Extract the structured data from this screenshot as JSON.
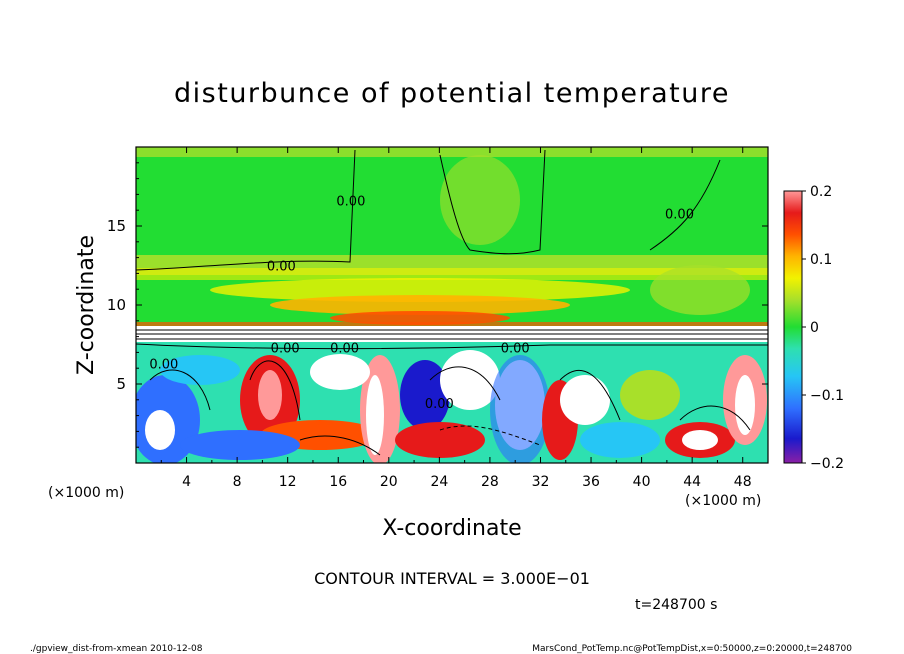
{
  "chart_data": {
    "type": "heatmap",
    "title": "disturbunce of potential temperature",
    "xlabel": "X-coordinate",
    "ylabel": "Z-coordinate",
    "x_unit": "(×1000 m)",
    "y_unit": "(×1000 m)",
    "xlim": [
      0,
      50
    ],
    "ylim": [
      0,
      20
    ],
    "x_ticks": [
      4,
      8,
      12,
      16,
      20,
      24,
      28,
      32,
      36,
      40,
      44,
      48
    ],
    "y_ticks": [
      5,
      10,
      15
    ],
    "colorbar": {
      "range": [
        -0.2,
        0.2
      ],
      "tick_labels": [
        "0.2",
        "0.1",
        "0",
        "−0.1",
        "−0.2"
      ],
      "tick_values": [
        0.2,
        0.1,
        0,
        -0.1,
        -0.2
      ]
    },
    "contour_interval_text": "CONTOUR INTERVAL = 3.000E−01",
    "contour_labels": [
      {
        "text": "0.00",
        "x": 11.5,
        "z": 12.5
      },
      {
        "text": "0.00",
        "x": 16.5,
        "z": 7.3
      },
      {
        "text": "0.00",
        "x": 17.0,
        "z": 16.6
      },
      {
        "text": "0.00",
        "x": 30.0,
        "z": 7.3
      },
      {
        "text": "0.00",
        "x": 43.0,
        "z": 15.8
      },
      {
        "text": "0.00",
        "x": 2.2,
        "z": 6.3
      },
      {
        "text": "0.00",
        "x": 24.0,
        "z": 3.8
      },
      {
        "text": "0.00",
        "x": 11.8,
        "z": 7.3
      }
    ],
    "time_text": "t=248700 s"
  },
  "footer": {
    "left": "./gpview_dist-from-xmean  2010-12-08",
    "right": "MarsCond_PotTemp.nc@PotTempDist,x=0:50000,z=0:20000,t=248700"
  },
  "colors": {
    "background_field": "#22dd33",
    "colormap": [
      "#8a1fa6",
      "#1a1acc",
      "#2f6fff",
      "#26c6f5",
      "#2ee0b0",
      "#22dd33",
      "#a8e02a",
      "#f2f200",
      "#ffb400",
      "#ff5000",
      "#e61a1a",
      "#ff9999"
    ]
  }
}
